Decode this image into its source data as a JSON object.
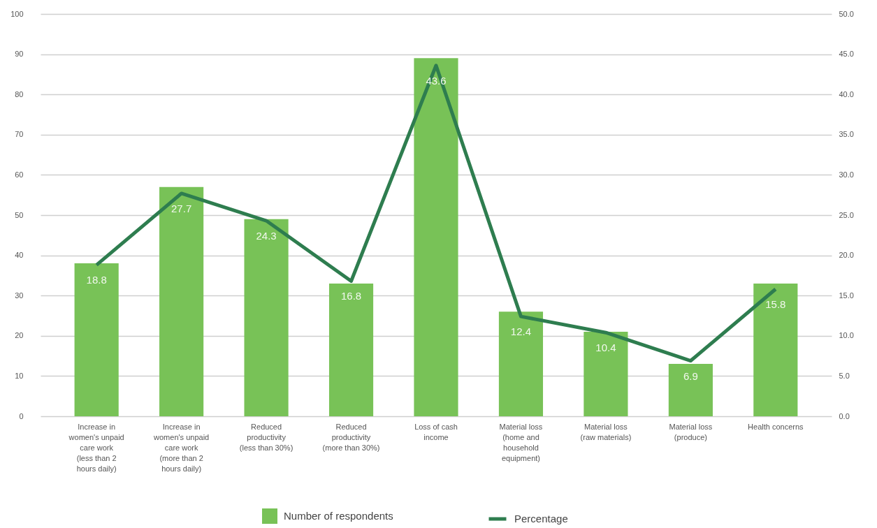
{
  "chart_data": {
    "type": "bar",
    "categories": [
      "Increase in women's unpaid care work (less than 2 hours daily)",
      "Increase in women's unpaid care work (more than 2 hours daily)",
      "Reduced productivity (less than 30%)",
      "Reduced productivity (more than 30%)",
      "Loss of cash income",
      "Material loss (home and household equipment)",
      "Material loss (raw materials)",
      "Material loss (produce)",
      "Health concerns"
    ],
    "series": [
      {
        "name": "Number of respondents",
        "color": "#78c257",
        "values": [
          38,
          57,
          49,
          33,
          89,
          26,
          21,
          13,
          33
        ]
      },
      {
        "name": "Percentage",
        "type": "line",
        "axis": "y2",
        "color": "#2e7d4f",
        "values": [
          18.8,
          27.7,
          24.3,
          16.8,
          43.6,
          12.4,
          10.4,
          6.9,
          15.8
        ],
        "data_labels": true
      }
    ],
    "ylim": [
      0,
      100
    ],
    "yticks": [
      0,
      10,
      20,
      30,
      40,
      50,
      60,
      70,
      80,
      90,
      100
    ],
    "y2lim": [
      0,
      50
    ],
    "y2ticks": [
      {
        "value": 0,
        "label": "0.0"
      },
      {
        "value": 5,
        "label": "5.0"
      },
      {
        "value": 10,
        "label": "10.0"
      },
      {
        "value": 15,
        "label": "15.0"
      },
      {
        "value": 20,
        "label": "20.0"
      },
      {
        "value": 25,
        "label": "25.0"
      },
      {
        "value": 30,
        "label": "30.0"
      },
      {
        "value": 35,
        "label": "35.0"
      },
      {
        "value": 40,
        "label": "40.0"
      },
      {
        "value": 45,
        "label": "45.0"
      },
      {
        "value": 50,
        "label": "50.0"
      }
    ],
    "grid": "y",
    "legend": "bottom",
    "line_style": "solid",
    "marker": "none"
  }
}
